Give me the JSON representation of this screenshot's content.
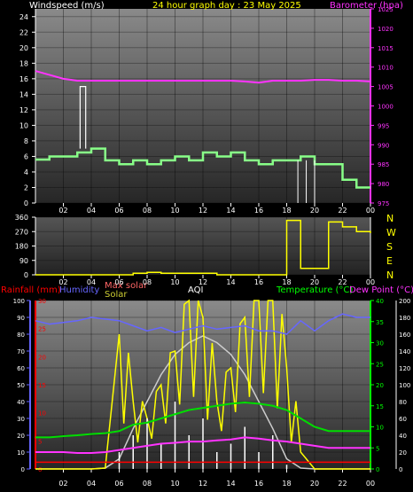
{
  "header": {
    "left": "Windspeed (m/s)",
    "center": "24 hour graph day : 23 May 2025",
    "right": "Barometer (hpa)"
  },
  "bottom_titles": {
    "rainfall": "Rainfall (mm)",
    "humidity": "Humidity",
    "max_solar": "Max solar",
    "solar": "Solar",
    "aqi": "AQI",
    "temperature": "Temperature (°C)",
    "dewpoint": "Dew Point (°C)"
  },
  "colors": {
    "wind": "#00ff00",
    "gust": "#ffffff",
    "barometer": "#ff33ff",
    "direction": "#ffff00",
    "rain": "#ff0000",
    "humidity": "#6666ff",
    "max_solar": "#cccccc",
    "solar": "#ffff00",
    "aqi": "#ffffff",
    "temperature": "#00dd00",
    "dewpoint": "#ff33ff",
    "axis_left": "#ffffff",
    "axis_right_baro": "#ff33ff",
    "axis_right_temp": "#00ff00",
    "axis_rain": "#ff0000",
    "axis_hum": "#6666ff",
    "axis_aqi": "#ffffff"
  },
  "x_ticks": [
    "02",
    "04",
    "06",
    "08",
    "10",
    "12",
    "14",
    "16",
    "18",
    "20",
    "22",
    "00"
  ],
  "compass_labels": [
    "N",
    "W",
    "S",
    "E",
    "N"
  ],
  "chart_data": [
    {
      "type": "line",
      "title": "24 hour graph day : 23 May 2025",
      "x": [
        0,
        1,
        2,
        3,
        4,
        5,
        6,
        7,
        8,
        9,
        10,
        11,
        12,
        13,
        14,
        15,
        16,
        17,
        18,
        19,
        20,
        21,
        22,
        23,
        24
      ],
      "series": [
        {
          "name": "Windspeed (m/s)",
          "values": [
            5.6,
            6,
            6,
            6.5,
            7,
            5.5,
            5,
            5.5,
            5,
            5.5,
            6,
            5.5,
            6.5,
            6,
            6.5,
            5.5,
            5,
            5.5,
            5.5,
            6,
            5,
            5,
            3,
            2,
            2
          ]
        },
        {
          "name": "Barometer (hpa)",
          "values": [
            1009,
            1008,
            1007,
            1006.5,
            1006.5,
            1006.5,
            1006.5,
            1006.5,
            1006.5,
            1006.5,
            1006.5,
            1006.5,
            1006.5,
            1006.5,
            1006.5,
            1006.3,
            1006,
            1006.5,
            1006.5,
            1006.5,
            1006.7,
            1006.7,
            1006.5,
            1006.5,
            1006.3
          ]
        }
      ],
      "ylabel": "Windspeed (m/s)",
      "ylim": [
        0,
        25
      ],
      "y_ticks": [
        0,
        2,
        4,
        6,
        8,
        10,
        12,
        14,
        16,
        18,
        20,
        22,
        24
      ],
      "y2label": "Barometer (hpa)",
      "y2lim": [
        975,
        1025
      ],
      "y2_ticks": [
        975,
        980,
        985,
        990,
        995,
        1000,
        1005,
        1010,
        1015,
        1020,
        1025
      ]
    },
    {
      "type": "line",
      "x": [
        0,
        1,
        2,
        3,
        4,
        5,
        6,
        7,
        8,
        9,
        10,
        11,
        12,
        13,
        14,
        15,
        16,
        17,
        18,
        19,
        20,
        21,
        22,
        23,
        24
      ],
      "series": [
        {
          "name": "Wind direction",
          "values": [
            0,
            0,
            0,
            0,
            0,
            0,
            0,
            10,
            15,
            10,
            10,
            10,
            10,
            0,
            0,
            0,
            0,
            0,
            340,
            40,
            40,
            330,
            300,
            270,
            260
          ]
        }
      ],
      "ylim": [
        0,
        360
      ],
      "y_ticks": [
        0,
        90,
        180,
        270,
        360
      ]
    },
    {
      "type": "line",
      "title": "",
      "x": [
        0,
        1,
        2,
        3,
        4,
        5,
        6,
        7,
        8,
        9,
        10,
        11,
        12,
        13,
        14,
        15,
        16,
        17,
        18,
        19,
        20,
        21,
        22,
        23,
        24
      ],
      "series": [
        {
          "name": "Humidity",
          "values": [
            88,
            86,
            87,
            88,
            90,
            89,
            88,
            85,
            82,
            84,
            81,
            83,
            85,
            83,
            84,
            85,
            82,
            82,
            80,
            88,
            82,
            88,
            92,
            90,
            90
          ]
        },
        {
          "name": "Max solar",
          "values": [
            0,
            0,
            0,
            0,
            0,
            5,
            60,
            240,
            400,
            560,
            680,
            750,
            790,
            750,
            680,
            560,
            400,
            240,
            60,
            5,
            0,
            0,
            0,
            0,
            0
          ]
        },
        {
          "name": "Solar",
          "values": [
            0,
            0,
            0,
            0,
            0,
            5,
            800,
            400,
            300,
            500,
            700,
            1000,
            900,
            400,
            600,
            900,
            1000,
            1000,
            600,
            100,
            0,
            0,
            0,
            0,
            0
          ]
        },
        {
          "name": "AQI",
          "values": [
            2,
            2,
            2,
            2,
            2,
            3,
            20,
            40,
            60,
            30,
            80,
            40,
            60,
            20,
            30,
            50,
            20,
            40,
            5,
            3,
            2,
            2,
            2,
            2,
            2
          ]
        },
        {
          "name": "Temperature (°C)",
          "values": [
            7.5,
            7.5,
            7.8,
            8,
            8.3,
            8.5,
            9,
            10.5,
            11,
            12,
            13,
            14,
            14.5,
            15,
            15.5,
            15.8,
            15.5,
            15,
            14,
            12,
            10,
            9,
            9,
            9,
            9
          ]
        },
        {
          "name": "Dew Point (°C)",
          "values": [
            4,
            4,
            4,
            3.8,
            3.8,
            4,
            4.5,
            5,
            5.5,
            6,
            6.2,
            6.5,
            6.5,
            6.8,
            7,
            7.5,
            7.2,
            6.8,
            6.5,
            6,
            5.5,
            5,
            5,
            5,
            5
          ]
        },
        {
          "name": "Rainfall (mm)",
          "values": [
            0,
            0,
            0,
            0,
            0,
            0,
            0,
            0,
            0,
            0,
            0,
            0,
            0,
            0,
            0,
            0,
            0,
            0,
            0,
            0,
            0,
            0,
            0,
            0,
            0
          ]
        }
      ],
      "y_axes": {
        "humidity": {
          "ylim": [
            0,
            100
          ],
          "ticks": [
            0,
            10,
            20,
            30,
            40,
            50,
            60,
            70,
            80,
            90,
            100
          ]
        },
        "rainfall": {
          "ylim": [
            0,
            30
          ],
          "ticks": [
            0,
            5,
            10,
            15,
            20,
            25,
            30
          ]
        },
        "temperature": {
          "ylim": [
            0,
            40
          ],
          "ticks": [
            0,
            5,
            10,
            15,
            20,
            25,
            30,
            35,
            40
          ]
        },
        "solar": {
          "ylim": [
            0,
            1000
          ]
        },
        "aqi": {
          "ylim": [
            0,
            200
          ],
          "ticks": [
            0,
            20,
            40,
            60,
            80,
            100,
            120,
            140,
            160,
            180,
            200
          ]
        }
      }
    }
  ]
}
